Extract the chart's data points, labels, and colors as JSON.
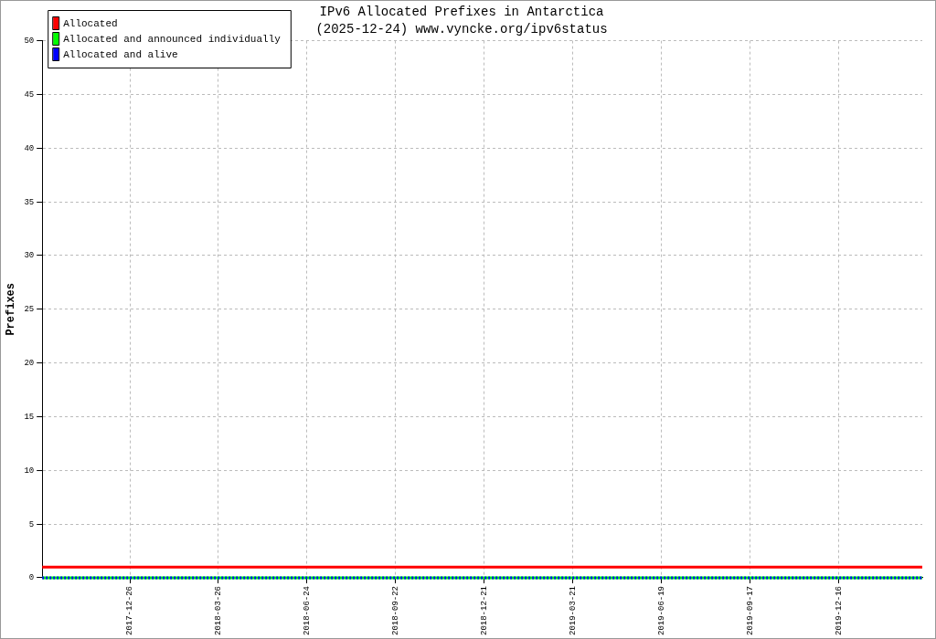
{
  "chart_data": {
    "type": "line",
    "title": "IPv6 Allocated Prefixes in Antarctica",
    "subtitle": "(2025-12-24) www.vyncke.org/ipv6status",
    "ylabel": "Prefixes",
    "series": [
      {
        "name": "Allocated",
        "color": "#ff0000",
        "x": [
          "2017-09-28",
          "2020-03-10"
        ],
        "values": [
          1,
          1
        ]
      },
      {
        "name": "Allocated and announced individually",
        "color": "#00ff00",
        "x": [
          "2017-09-28",
          "2020-03-10"
        ],
        "values": [
          0,
          0
        ]
      },
      {
        "name": "Allocated and alive",
        "color": "#0000ff",
        "x": [
          "2017-09-28",
          "2020-03-10"
        ],
        "values": [
          0,
          0
        ],
        "line_style": "dotted"
      }
    ],
    "xlim": [
      "2017-09-28",
      "2020-03-10"
    ],
    "xticks": [
      "2017-12-26",
      "2018-03-26",
      "2018-06-24",
      "2018-09-22",
      "2018-12-21",
      "2019-03-21",
      "2019-06-19",
      "2019-09-17",
      "2019-12-16"
    ],
    "ylim": [
      0,
      50
    ],
    "yticks": [
      0,
      5,
      10,
      15,
      20,
      25,
      30,
      35,
      40,
      45,
      50
    ],
    "grid": true,
    "legend": "top left",
    "marker": "none",
    "line_style": "solid"
  }
}
